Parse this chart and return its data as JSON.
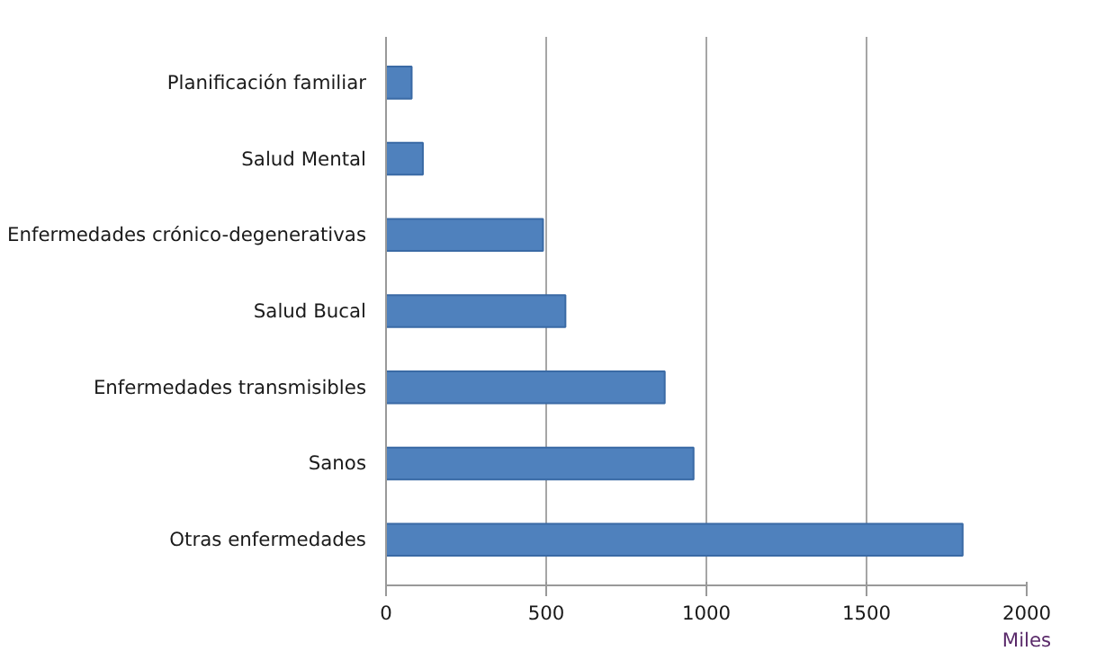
{
  "chart_data": {
    "type": "bar",
    "orientation": "horizontal",
    "xlabel": "Miles",
    "categories": [
      "Planificación familiar",
      "Salud Mental",
      "Enfermedades crónico-degenerativas",
      "Salud Bucal",
      "Enfermedades transmisibles",
      "Sanos",
      "Otras enfermedades"
    ],
    "values": [
      80,
      115,
      490,
      560,
      870,
      960,
      1800
    ],
    "color": "#4f81bd",
    "xlim": [
      0,
      2000
    ],
    "xticks": [
      0,
      500,
      1000,
      1500,
      2000
    ],
    "grid": "x"
  }
}
